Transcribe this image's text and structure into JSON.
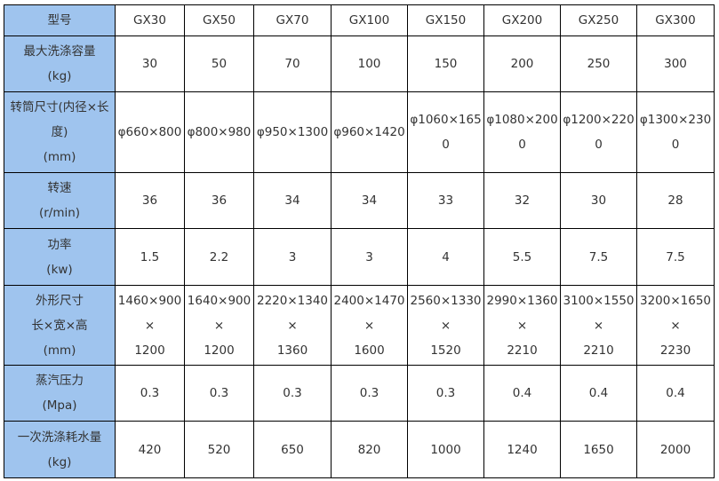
{
  "colors": {
    "header_bg": "#9fc4ee",
    "border": "#000000",
    "text": "#333333"
  },
  "rows": [
    {
      "label": [
        "型号"
      ],
      "cells": [
        [
          "GX30"
        ],
        [
          "GX50"
        ],
        [
          "GX70"
        ],
        [
          "GX100"
        ],
        [
          "GX150"
        ],
        [
          "GX200"
        ],
        [
          "GX250"
        ],
        [
          "GX300"
        ]
      ]
    },
    {
      "label": [
        "最大洗涤容量",
        "(kg)"
      ],
      "cells": [
        [
          "30"
        ],
        [
          "50"
        ],
        [
          "70"
        ],
        [
          "100"
        ],
        [
          "150"
        ],
        [
          "200"
        ],
        [
          "250"
        ],
        [
          "300"
        ]
      ]
    },
    {
      "label": [
        "转筒尺寸(内径×长",
        "度)",
        "(mm)"
      ],
      "cells": [
        [
          "φ660×800"
        ],
        [
          "φ800×980"
        ],
        [
          "φ950×1300"
        ],
        [
          "φ960×1420"
        ],
        [
          "φ1060×165",
          "0"
        ],
        [
          "φ1080×200",
          "0"
        ],
        [
          "φ1200×220",
          "0"
        ],
        [
          "φ1300×230",
          "0"
        ]
      ]
    },
    {
      "label": [
        "转速",
        "(r/min)"
      ],
      "cells": [
        [
          "36"
        ],
        [
          "36"
        ],
        [
          "34"
        ],
        [
          "34"
        ],
        [
          "33"
        ],
        [
          "32"
        ],
        [
          "30"
        ],
        [
          "28"
        ]
      ]
    },
    {
      "label": [
        "功率",
        "(kw)"
      ],
      "cells": [
        [
          "1.5"
        ],
        [
          "2.2"
        ],
        [
          "3"
        ],
        [
          "3"
        ],
        [
          "4"
        ],
        [
          "5.5"
        ],
        [
          "7.5"
        ],
        [
          "7.5"
        ]
      ]
    },
    {
      "label": [
        "外形尺寸",
        "长×宽×高",
        "(mm)"
      ],
      "cells": [
        [
          "1460×900",
          "×",
          "1200"
        ],
        [
          "1640×900",
          "×",
          "1200"
        ],
        [
          "2220×1340",
          "×",
          "1360"
        ],
        [
          "2400×1470",
          "×",
          "1600"
        ],
        [
          "2560×1330",
          "×",
          "1520"
        ],
        [
          "2990×1360",
          "×",
          "2210"
        ],
        [
          "3100×1550",
          "×",
          "2210"
        ],
        [
          "3200×1650",
          "×",
          "2230"
        ]
      ]
    },
    {
      "label": [
        "蒸汽压力",
        "(Mpa)"
      ],
      "cells": [
        [
          "0.3"
        ],
        [
          "0.3"
        ],
        [
          "0.3"
        ],
        [
          "0.3"
        ],
        [
          "0.3"
        ],
        [
          "0.4"
        ],
        [
          "0.4"
        ],
        [
          "0.4"
        ]
      ]
    },
    {
      "label": [
        "一次洗涤耗水量",
        "(kg)"
      ],
      "cells": [
        [
          "420"
        ],
        [
          "520"
        ],
        [
          "650"
        ],
        [
          "820"
        ],
        [
          "1000"
        ],
        [
          "1240"
        ],
        [
          "1650"
        ],
        [
          "2000"
        ]
      ]
    }
  ]
}
